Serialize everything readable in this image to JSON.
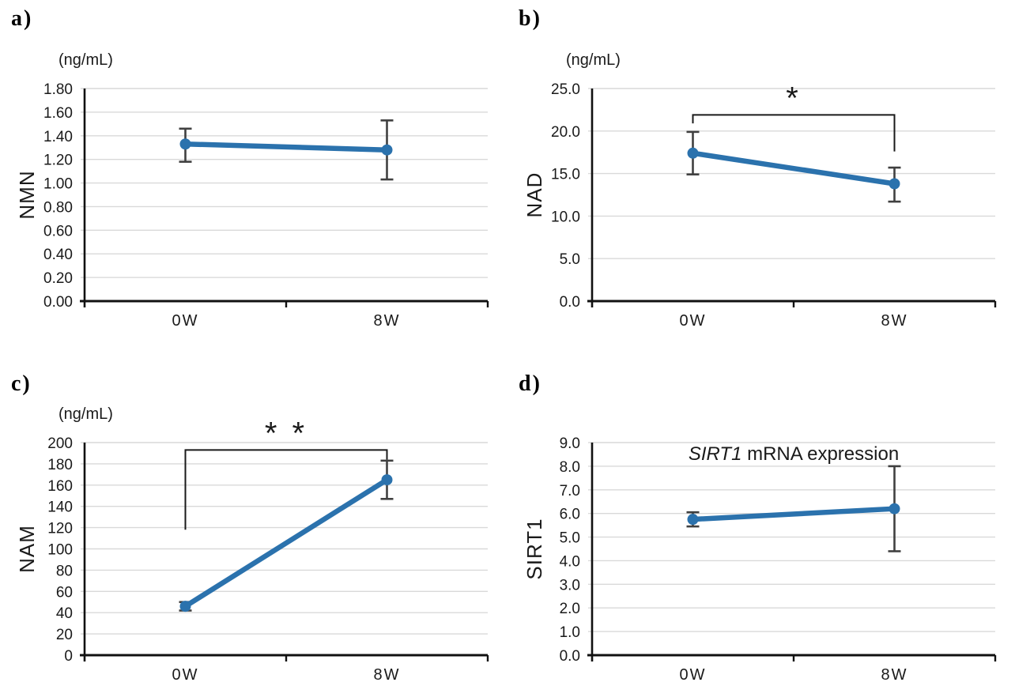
{
  "figure": {
    "background_color": "#ffffff",
    "accent_color": "#2b72ad",
    "error_bar_color": "#404040",
    "grid_color": "#d9d9d9",
    "axis_color": "#111111",
    "text_color": "#1a1a1a",
    "bracket_color": "#1a1a1a"
  },
  "chart_data": [
    {
      "id": "a",
      "panel_label": "a)",
      "type": "line",
      "unit_label": "(ng/mL)",
      "ylabel": "NMN",
      "title_parts": [],
      "categories": [
        "0W",
        "8W"
      ],
      "series": [
        {
          "name": "NMN",
          "values": [
            1.33,
            1.28
          ],
          "error_low": [
            1.18,
            1.03
          ],
          "error_high": [
            1.46,
            1.53
          ]
        }
      ],
      "ylim": [
        0.0,
        1.8
      ],
      "ystep": 0.2,
      "ydecimals": 2,
      "grid": true,
      "legend": null,
      "significance": null
    },
    {
      "id": "b",
      "panel_label": "b)",
      "type": "line",
      "unit_label": "(ng/mL)",
      "ylabel": "NAD",
      "title_parts": [],
      "categories": [
        "0W",
        "8W"
      ],
      "series": [
        {
          "name": "NAD",
          "values": [
            17.4,
            13.8
          ],
          "error_low": [
            14.9,
            11.7
          ],
          "error_high": [
            19.9,
            15.7
          ]
        }
      ],
      "ylim": [
        0.0,
        25.0
      ],
      "ystep": 5.0,
      "ydecimals": 1,
      "grid": true,
      "legend": null,
      "significance": {
        "label": "*",
        "bar_y": 21.9,
        "left_drop_to": 20.9,
        "right_drop_to": 17.6
      }
    },
    {
      "id": "c",
      "panel_label": "c)",
      "type": "line",
      "unit_label": "(ng/mL)",
      "ylabel": "NAM",
      "title_parts": [],
      "categories": [
        "0W",
        "8W"
      ],
      "series": [
        {
          "name": "NAM",
          "values": [
            46,
            165
          ],
          "error_low": [
            42,
            147
          ],
          "error_high": [
            50,
            183
          ]
        }
      ],
      "ylim": [
        0,
        200
      ],
      "ystep": 20,
      "ydecimals": 0,
      "grid": true,
      "legend": null,
      "significance": {
        "label": "* *",
        "bar_y": 193,
        "left_drop_to": 118,
        "right_drop_to": 184
      }
    },
    {
      "id": "d",
      "panel_label": "d)",
      "type": "line",
      "unit_label": "",
      "ylabel": "SIRT1",
      "title_parts": [
        {
          "text": "SIRT1",
          "italic": true
        },
        {
          "text": " mRNA expression",
          "italic": false
        }
      ],
      "categories": [
        "0W",
        "8W"
      ],
      "series": [
        {
          "name": "SIRT1",
          "values": [
            5.75,
            6.2
          ],
          "error_low": [
            5.45,
            4.4
          ],
          "error_high": [
            6.05,
            8.0
          ]
        }
      ],
      "ylim": [
        0.0,
        9.0
      ],
      "ystep": 1.0,
      "ydecimals": 1,
      "grid": true,
      "legend": null,
      "significance": null
    }
  ]
}
